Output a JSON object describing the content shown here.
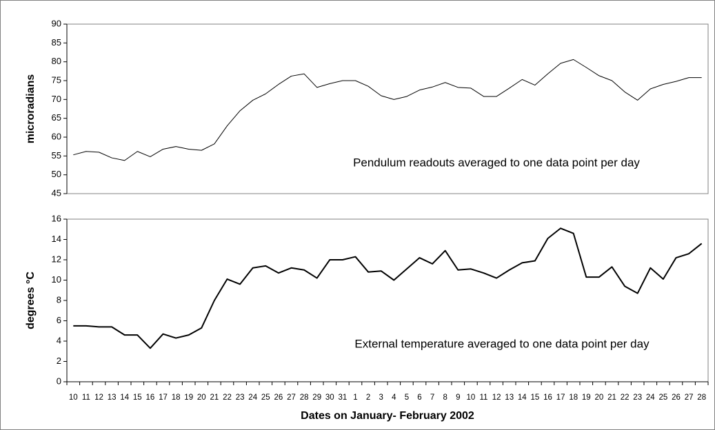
{
  "chart_data": [
    {
      "type": "line",
      "ylabel": "microradians",
      "annotation": "Pendulum readouts averaged to one data point per day",
      "ylim": [
        45,
        90
      ],
      "yticks": [
        45,
        50,
        55,
        60,
        65,
        70,
        75,
        80,
        85,
        90
      ],
      "color": "#000000",
      "line_width": 1,
      "values": [
        55.3,
        56.2,
        56.0,
        54.5,
        53.8,
        56.2,
        54.8,
        56.8,
        57.5,
        56.8,
        56.5,
        58.2,
        63.0,
        67.0,
        69.8,
        71.5,
        74.0,
        76.2,
        76.8,
        73.2,
        74.2,
        75.0,
        75.0,
        73.5,
        71.0,
        70.0,
        70.8,
        72.5,
        73.3,
        74.5,
        73.2,
        73.0,
        70.8,
        70.8,
        73.0,
        75.3,
        73.8,
        76.8,
        79.6,
        80.6,
        78.5,
        76.3,
        75.0,
        72.0,
        69.8,
        72.8,
        74.0,
        74.8,
        75.8,
        75.8
      ]
    },
    {
      "type": "line",
      "ylabel": "degrees °C",
      "xlabel": "Dates on January- February 2002",
      "annotation": "External temperature averaged to one data point per day",
      "ylim": [
        0,
        16
      ],
      "yticks": [
        0,
        2,
        4,
        6,
        8,
        10,
        12,
        14,
        16
      ],
      "color": "#000000",
      "line_width": 2,
      "categories": [
        "10",
        "11",
        "12",
        "13",
        "14",
        "15",
        "16",
        "17",
        "18",
        "19",
        "20",
        "21",
        "22",
        "23",
        "24",
        "25",
        "26",
        "27",
        "28",
        "29",
        "30",
        "31",
        "1",
        "2",
        "3",
        "4",
        "5",
        "6",
        "7",
        "8",
        "9",
        "10",
        "11",
        "12",
        "13",
        "14",
        "15",
        "16",
        "17",
        "18",
        "19",
        "20",
        "21",
        "22",
        "23",
        "24",
        "25",
        "26",
        "27",
        "28"
      ],
      "values": [
        5.5,
        5.5,
        5.4,
        5.4,
        4.6,
        4.6,
        3.3,
        4.7,
        4.3,
        4.6,
        5.3,
        8.0,
        10.1,
        9.6,
        11.2,
        11.4,
        10.7,
        11.2,
        11.0,
        10.2,
        12.0,
        12.0,
        12.3,
        10.8,
        10.9,
        10.0,
        11.1,
        12.2,
        11.6,
        12.9,
        11.0,
        11.1,
        10.7,
        10.2,
        11.0,
        11.7,
        11.9,
        14.1,
        15.1,
        14.6,
        10.3,
        10.3,
        11.3,
        9.4,
        8.7,
        11.2,
        10.1,
        12.2,
        12.6,
        13.6
      ]
    }
  ]
}
